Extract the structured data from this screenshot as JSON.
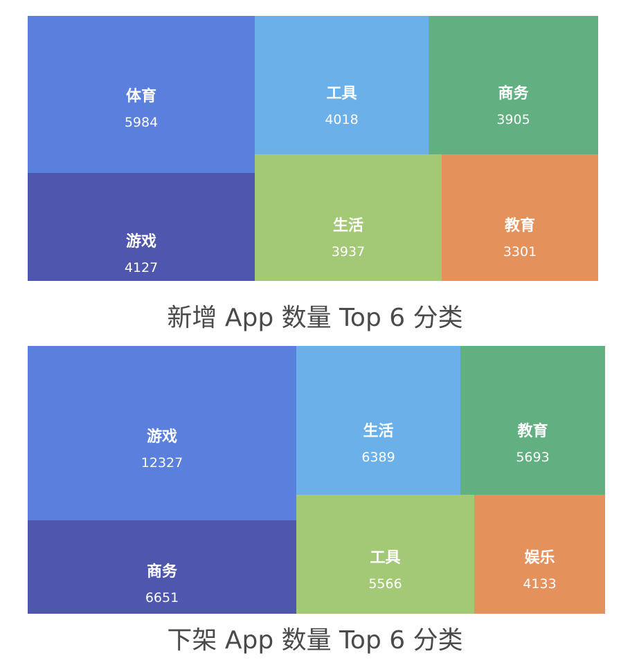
{
  "chart_data": [
    {
      "type": "treemap",
      "title": "新增 App 数量 Top 6 分类",
      "items": [
        {
          "name": "体育",
          "value": 5984,
          "color": "#5a7fdc"
        },
        {
          "name": "游戏",
          "value": 4127,
          "color": "#4f56ad"
        },
        {
          "name": "工具",
          "value": 4018,
          "color": "#6bb0e8"
        },
        {
          "name": "商务",
          "value": 3905,
          "color": "#62b082"
        },
        {
          "name": "生活",
          "value": 3937,
          "color": "#a4c976"
        },
        {
          "name": "教育",
          "value": 3301,
          "color": "#e5915b"
        }
      ]
    },
    {
      "type": "treemap",
      "title": "下架 App 数量 Top 6 分类",
      "items": [
        {
          "name": "游戏",
          "value": 12327,
          "color": "#5a7fdc"
        },
        {
          "name": "商务",
          "value": 6651,
          "color": "#4f56ad"
        },
        {
          "name": "生活",
          "value": 6389,
          "color": "#6bb0e8"
        },
        {
          "name": "教育",
          "value": 5693,
          "color": "#62b082"
        },
        {
          "name": "工具",
          "value": 5566,
          "color": "#a4c976"
        },
        {
          "name": "娱乐",
          "value": 4133,
          "color": "#e5915b"
        }
      ]
    }
  ]
}
